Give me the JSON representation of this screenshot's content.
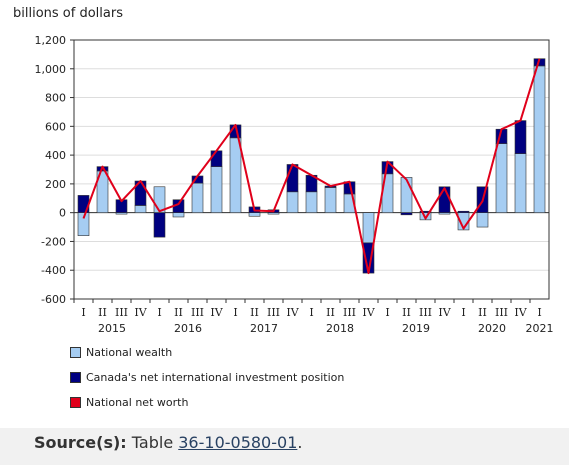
{
  "source": {
    "label": "Source(s):",
    "prefix": "Table",
    "link_text": "36-10-0580-01",
    "suffix": "."
  },
  "colors": {
    "wealth": "#a6cdf2",
    "niip": "#000080",
    "networth": "#e0001b",
    "grid": "#dddddd",
    "axis": "#333333"
  },
  "chart_data": {
    "type": "bar",
    "ylabel": "billions of dollars",
    "ylim": [
      -600,
      1200
    ],
    "yticks": [
      -600,
      -400,
      -200,
      0,
      200,
      400,
      600,
      800,
      1000,
      1200
    ],
    "ytick_labels": [
      "-600",
      "-400",
      "-200",
      "0",
      "200",
      "400",
      "600",
      "800",
      "1,000",
      "1,200"
    ],
    "categories": [
      "I",
      "II",
      "III",
      "IV",
      "I",
      "II",
      "III",
      "IV",
      "I",
      "II",
      "III",
      "IV",
      "I",
      "II",
      "III",
      "IV",
      "I",
      "II",
      "III",
      "IV",
      "I",
      "II",
      "III",
      "IV",
      "I"
    ],
    "year_labels": [
      {
        "label": "2015",
        "start": 0,
        "end": 3
      },
      {
        "label": "2016",
        "start": 4,
        "end": 7
      },
      {
        "label": "2017",
        "start": 8,
        "end": 11
      },
      {
        "label": "2018",
        "start": 12,
        "end": 15
      },
      {
        "label": "2019",
        "start": 16,
        "end": 19
      },
      {
        "label": "2020",
        "start": 20,
        "end": 23
      },
      {
        "label": "2021",
        "start": 24,
        "end": 24
      }
    ],
    "series": [
      {
        "name": "National wealth",
        "type": "bar",
        "values": [
          -160,
          290,
          -10,
          50,
          180,
          -30,
          205,
          320,
          520,
          -25,
          -10,
          145,
          145,
          175,
          130,
          -210,
          270,
          245,
          -50,
          -10,
          -120,
          -100,
          480,
          410,
          1020
        ]
      },
      {
        "name": "Canada's net international investment position",
        "type": "bar",
        "values": [
          120,
          30,
          90,
          170,
          -170,
          90,
          50,
          110,
          90,
          40,
          20,
          190,
          115,
          10,
          85,
          -210,
          85,
          -15,
          10,
          180,
          10,
          180,
          100,
          230,
          50
        ]
      },
      {
        "name": "National net worth",
        "type": "line",
        "values": [
          -40,
          320,
          80,
          220,
          10,
          60,
          255,
          430,
          610,
          15,
          10,
          335,
          260,
          185,
          215,
          -420,
          355,
          230,
          -40,
          170,
          -110,
          80,
          580,
          640,
          1070
        ]
      }
    ]
  }
}
